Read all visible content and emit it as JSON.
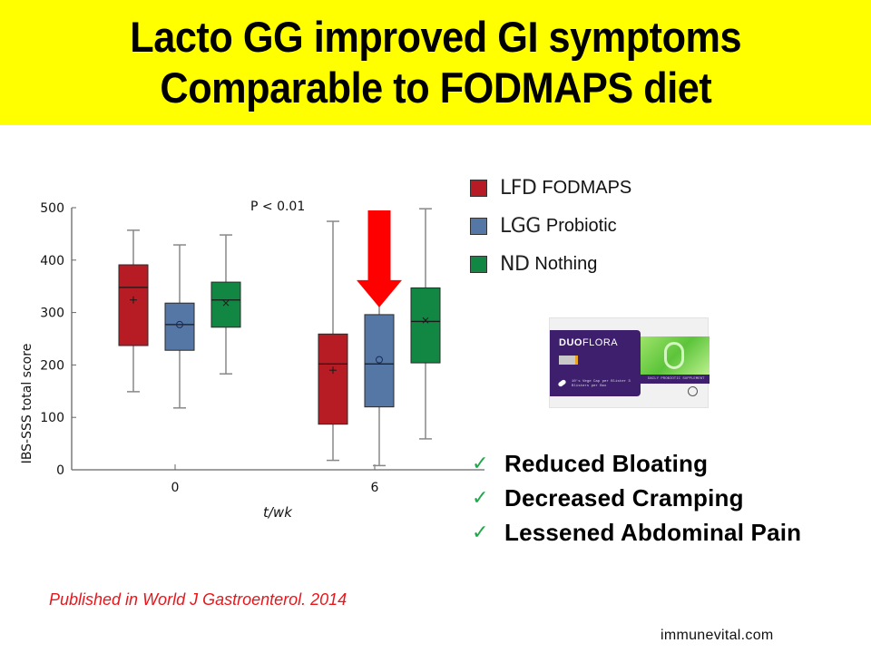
{
  "slide": {
    "title_lines": [
      "Lacto GG improved GI symptoms",
      "Comparable to FODMAPS diet"
    ],
    "title_bg_color": "#ffff00",
    "legend": [
      {
        "code": "LFD",
        "label": "FODMAPS",
        "color": "#b71c24"
      },
      {
        "code": "LGG",
        "label": "Probiotic",
        "color": "#5577a5"
      },
      {
        "code": "ND",
        "label": "Nothing",
        "color": "#128643"
      }
    ],
    "product": {
      "brand_bold": "DUO",
      "brand_light": "FLORA",
      "pack_text": "10's Vege Cap per Blister 3 Blisters per Box",
      "tagline": "DAILY PROBIOTIC SUPPLEMENT"
    },
    "benefits": [
      {
        "icon": "check-icon",
        "text": "Reduced Bloating"
      },
      {
        "icon": "check-icon",
        "text": "Decreased Cramping"
      },
      {
        "icon": "check-icon",
        "text": "Lessened Abdominal Pain"
      }
    ],
    "citation": "Published in World J Gastroenterol. 2014",
    "website": "immunevital.com",
    "check_color": "#1fa84a",
    "citation_color": "#e8161b"
  },
  "chart_data": {
    "type": "box",
    "title": "",
    "annotation": "P < 0.01",
    "xlabel": "t/wk",
    "ylabel": "IBS-SSS total score",
    "ylim": [
      0,
      500
    ],
    "yticks": [
      0,
      100,
      200,
      300,
      400,
      500
    ],
    "categories": [
      "0",
      "6"
    ],
    "grid": false,
    "legend_position": "right",
    "highlight_arrow": {
      "category": "6",
      "series": "LGG",
      "color": "#ff0000"
    },
    "series": [
      {
        "name": "LFD",
        "color": "#b71c24",
        "mean_marker": "+",
        "boxes": [
          {
            "min": 149,
            "q1": 237,
            "median": 348,
            "q3": 391,
            "max": 457,
            "mean": 324
          },
          {
            "min": 18,
            "q1": 87,
            "median": 202,
            "q3": 259,
            "max": 474,
            "mean": 190
          }
        ]
      },
      {
        "name": "LGG",
        "color": "#5577a5",
        "mean_marker": "o",
        "boxes": [
          {
            "min": 118,
            "q1": 228,
            "median": 277,
            "q3": 318,
            "max": 429,
            "mean": 277
          },
          {
            "min": 8,
            "q1": 120,
            "median": 202,
            "q3": 296,
            "max": 330,
            "mean": 210
          }
        ]
      },
      {
        "name": "ND",
        "color": "#128643",
        "mean_marker": "x",
        "boxes": [
          {
            "min": 183,
            "q1": 272,
            "median": 324,
            "q3": 358,
            "max": 448,
            "mean": 318
          },
          {
            "min": 59,
            "q1": 204,
            "median": 283,
            "q3": 347,
            "max": 498,
            "mean": 285
          }
        ]
      }
    ]
  }
}
